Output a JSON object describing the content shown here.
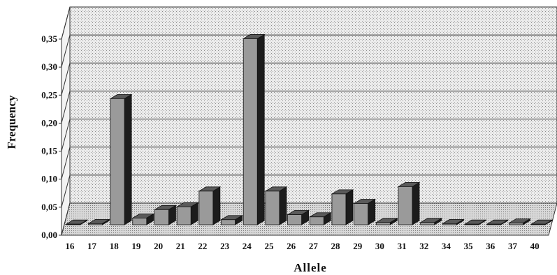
{
  "chart_data": {
    "type": "bar",
    "title": "",
    "xlabel": "Allele",
    "ylabel": "Frequency",
    "categories": [
      "16",
      "17",
      "18",
      "19",
      "20",
      "21",
      "22",
      "23",
      "24",
      "25",
      "26",
      "27",
      "28",
      "29",
      "30",
      "31",
      "32",
      "34",
      "35",
      "36",
      "37",
      "40"
    ],
    "values": [
      0.001,
      0.002,
      0.225,
      0.012,
      0.027,
      0.032,
      0.06,
      0.009,
      0.332,
      0.06,
      0.018,
      0.014,
      0.055,
      0.038,
      0.004,
      0.068,
      0.004,
      0.002,
      0.001,
      0.001,
      0.003,
      0.001
    ],
    "ylim": [
      0,
      0.35
    ],
    "yticks": [
      "0,00",
      "0,05",
      "0,10",
      "0,15",
      "0,20",
      "0,25",
      "0,30",
      "0,35"
    ],
    "grid": true,
    "style": "3d",
    "colors": {
      "bar_front": "#9a9a9a",
      "bar_side": "#1c1c1c",
      "bar_top": "#5a5a5a",
      "plot_bg": "#e6e6e6",
      "grid": "#333333"
    }
  }
}
